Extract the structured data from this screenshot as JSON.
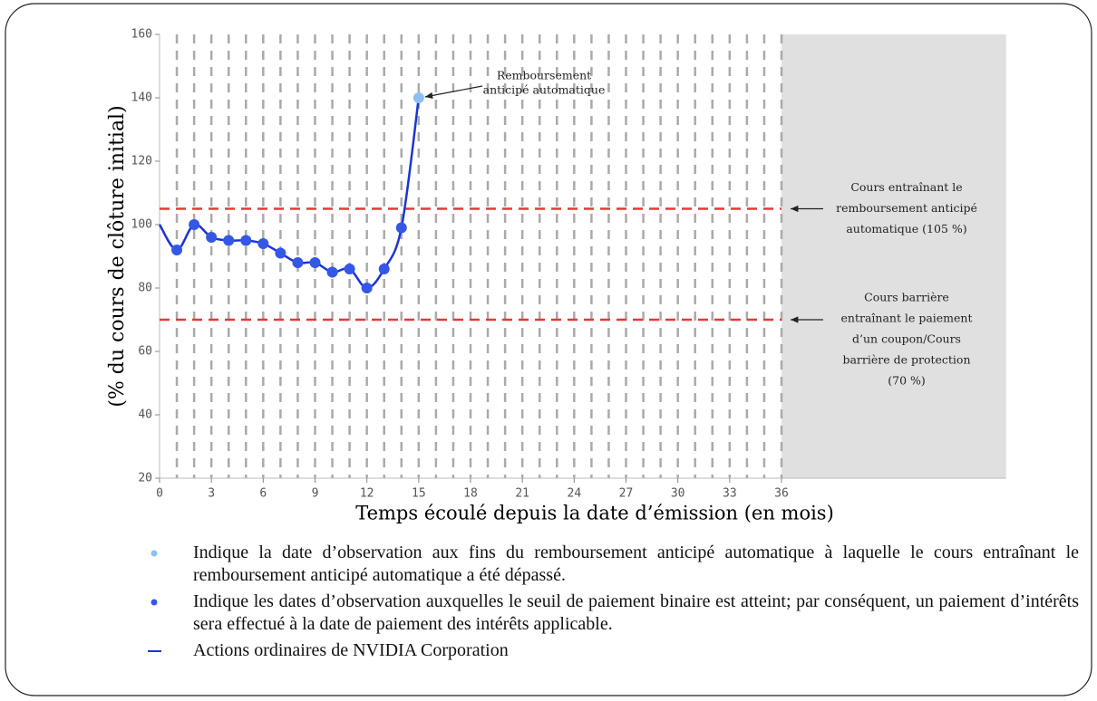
{
  "chart_data": {
    "type": "line",
    "y_label": "(% du cours de clôture initial)",
    "x_label": "Temps écoulé depuis la date d’émission (en mois)",
    "xlim": [
      0,
      49
    ],
    "ylim": [
      20,
      160
    ],
    "xticks": [
      0,
      3,
      6,
      9,
      12,
      15,
      18,
      21,
      24,
      27,
      30,
      33,
      36
    ],
    "yticks": [
      20,
      40,
      60,
      80,
      100,
      120,
      140,
      160
    ],
    "observation_step": 1,
    "shade_from": 36,
    "shade_color": "#e0e0e0",
    "series": [
      {
        "name": "Actions ordinaires de NVIDIA Corporation",
        "color": "#1a35d6",
        "x": [
          0,
          1,
          2,
          3,
          4,
          5,
          6,
          7,
          8,
          9,
          10,
          11,
          12,
          13,
          14,
          15
        ],
        "values": [
          100,
          92,
          100,
          96,
          95,
          95,
          94,
          91,
          88,
          88,
          85,
          86,
          80,
          86,
          99,
          140
        ],
        "marker_colors": [
          null,
          "#3557e6",
          "#3557e6",
          "#3557e6",
          "#3557e6",
          "#3557e6",
          "#3557e6",
          "#3557e6",
          "#3557e6",
          "#3557e6",
          "#3557e6",
          "#3557e6",
          "#3557e6",
          "#3557e6",
          "#3557e6",
          "#8cc0f5"
        ]
      }
    ],
    "hlines": [
      {
        "value": 105,
        "color": "#e53935",
        "label": [
          "Cours entraînant le",
          "remboursement anticipé",
          "automatique (105 %)"
        ]
      },
      {
        "value": 70,
        "color": "#e53935",
        "label": [
          "Cours barrière",
          "entraînant le paiement",
          "d’un coupon/Cours",
          "barrière de protection",
          "(70 %)"
        ]
      }
    ],
    "annotation": {
      "x": 15,
      "y": 140,
      "text": [
        "Remboursement",
        "anticipé automatique"
      ]
    },
    "legend": [
      {
        "symbol": "dot",
        "color": "#8cc0f5",
        "text": "Indique la date d’observation aux fins du remboursement anticipé automatique à laquelle le cours entraînant le remboursement anticipé automatique a été dépassé."
      },
      {
        "symbol": "dot",
        "color": "#3557e6",
        "text": "Indique les dates d’observation auxquelles le seuil de paiement binaire est atteint; par conséquent, un paiement d’intérêts sera effectué à la date de paiement des intérêts applicable."
      },
      {
        "symbol": "line",
        "color": "#1a35d6",
        "text": "Actions ordinaires de NVIDIA Corporation"
      }
    ]
  }
}
